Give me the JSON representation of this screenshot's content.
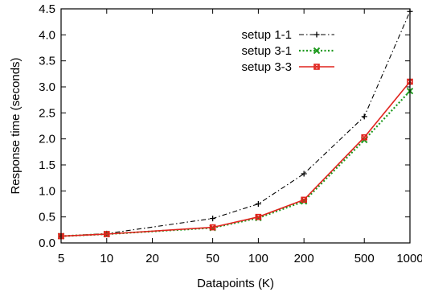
{
  "chart_data": {
    "type": "line",
    "xlabel": "Datapoints (K)",
    "ylabel": "Response time (seconds)",
    "x_scale": "log",
    "xlim": [
      5,
      1000
    ],
    "ylim": [
      0,
      4.5
    ],
    "x_ticks": [
      5,
      10,
      20,
      50,
      100,
      200,
      500,
      1000
    ],
    "x_tick_labels": [
      "5",
      "10",
      "20",
      "50",
      "100",
      "200",
      "500",
      "1000"
    ],
    "y_ticks": [
      0,
      0.5,
      1,
      1.5,
      2,
      2.5,
      3,
      3.5,
      4,
      4.5
    ],
    "y_tick_labels": [
      "0.0",
      "0.5",
      "1.0",
      "1.5",
      "2.0",
      "2.5",
      "3.0",
      "3.5",
      "4.0",
      "4.5"
    ],
    "grid": false,
    "legend_position": "top-right",
    "series": [
      {
        "name": "setup 1-1",
        "x": [
          5,
          10,
          50,
          100,
          200,
          500,
          1000
        ],
        "values": [
          0.13,
          0.18,
          0.47,
          0.75,
          1.33,
          2.43,
          4.45
        ],
        "color": "#000000",
        "dash": "dash-dot",
        "marker": "plus"
      },
      {
        "name": "setup 3-1",
        "x": [
          5,
          10,
          50,
          100,
          200,
          500,
          1000
        ],
        "values": [
          0.13,
          0.17,
          0.29,
          0.48,
          0.8,
          1.98,
          2.92
        ],
        "color": "#1e9a1e",
        "dash": "dotted",
        "marker": "x"
      },
      {
        "name": "setup 3-3",
        "x": [
          5,
          10,
          50,
          100,
          200,
          500,
          1000
        ],
        "values": [
          0.13,
          0.17,
          0.3,
          0.5,
          0.83,
          2.03,
          3.1
        ],
        "color": "#e0231d",
        "dash": "solid",
        "marker": "square"
      }
    ]
  }
}
